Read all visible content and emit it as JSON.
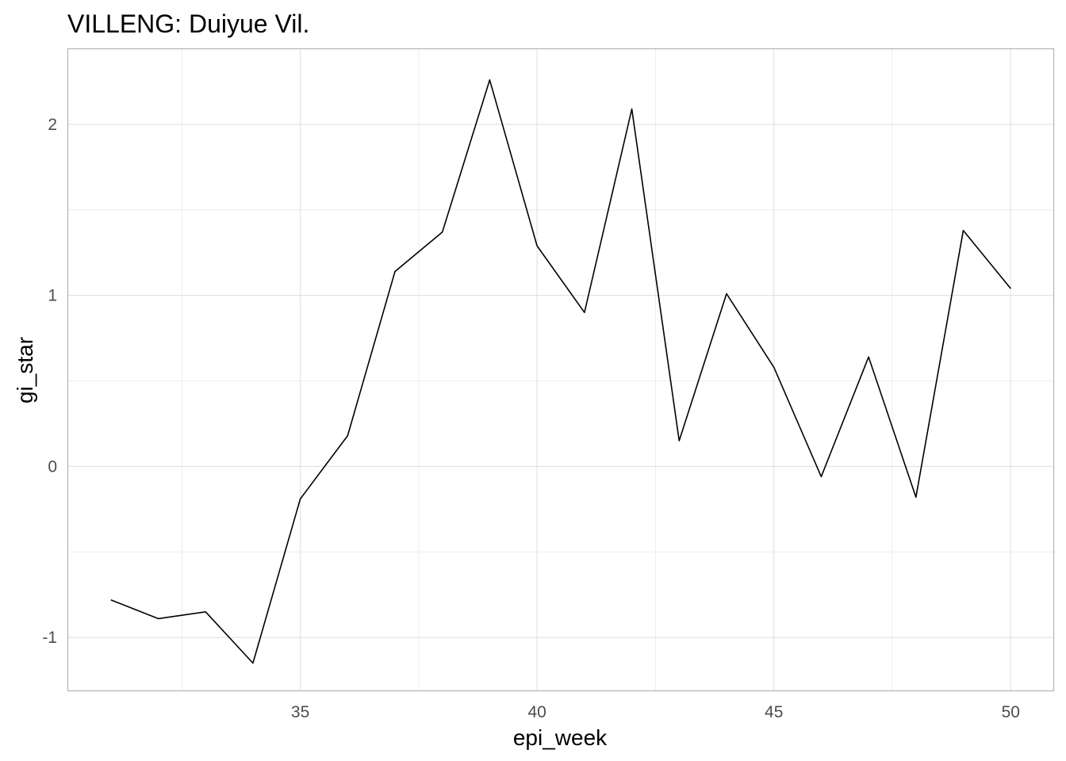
{
  "chart_data": {
    "type": "line",
    "title": "VILLENG: Duiyue Vil.",
    "xlabel": "epi_week",
    "ylabel": "gi_star",
    "x_ticks": [
      35,
      40,
      45,
      50
    ],
    "y_ticks": [
      -1,
      0,
      1,
      2
    ],
    "x_tick_labels": [
      "35",
      "40",
      "45",
      "50"
    ],
    "y_tick_labels": [
      "-1",
      "0",
      "1",
      "2"
    ],
    "xlim": [
      30.1,
      50.9
    ],
    "ylim": [
      -1.31,
      2.44
    ],
    "grid": true,
    "series": [
      {
        "color": "#000000",
        "x": [
          31,
          32,
          33,
          34,
          35,
          36,
          37,
          38,
          39,
          40,
          41,
          42,
          43,
          44,
          45,
          46,
          47,
          48,
          49,
          50
        ],
        "y": [
          -0.78,
          -0.89,
          -0.85,
          -1.15,
          -0.19,
          0.18,
          1.14,
          1.37,
          2.26,
          1.29,
          0.9,
          2.09,
          0.15,
          1.01,
          0.58,
          -0.06,
          0.64,
          -0.18,
          1.38,
          1.04
        ]
      }
    ]
  }
}
